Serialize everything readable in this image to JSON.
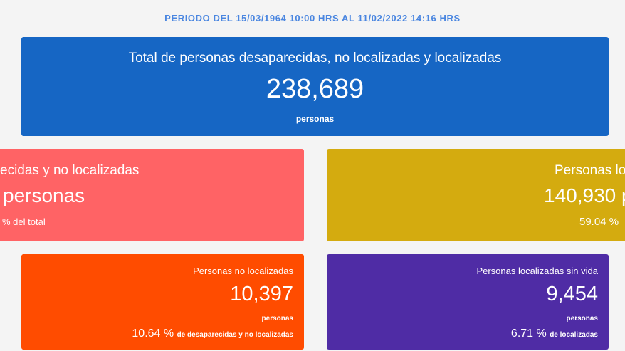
{
  "period": "PERIODO DEL 15/03/1964 10:00 HRS AL 11/02/2022 14:16 HRS",
  "total": {
    "title": "Total de personas desaparecidas, no localizadas y localizadas",
    "value": "238,689",
    "unit": "personas",
    "color": "#1666c4"
  },
  "desaparecidas": {
    "title": "ecidas y no localizadas",
    "value": "personas",
    "pct": "% del total",
    "color": "#ff6365"
  },
  "localizadas": {
    "title": "Personas lo",
    "value": "140,930 p",
    "pct": "59.04 %",
    "color": "#d4ab0f"
  },
  "no_localizadas": {
    "title": "Personas no localizadas",
    "value": "10,397",
    "unit": "personas",
    "pct": "10.64 %",
    "pct_label": "de desaparecidas y no localizadas",
    "color": "#ff4c00"
  },
  "sin_vida": {
    "title": "Personas localizadas sin vida",
    "value": "9,454",
    "unit": "personas",
    "pct": "6.71 %",
    "pct_label": "de localizadas",
    "color": "#4f2ca5"
  }
}
